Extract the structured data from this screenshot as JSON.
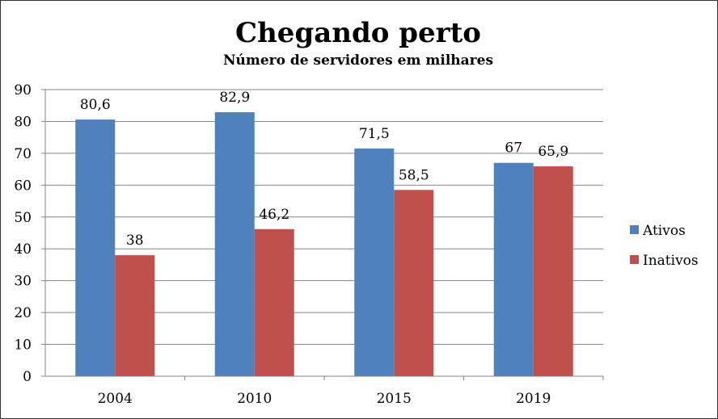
{
  "chart_data": {
    "type": "bar",
    "title": "Chegando perto",
    "subtitle": "Número de servidores em milhares",
    "categories": [
      "2004",
      "2010",
      "2015",
      "2019"
    ],
    "series": [
      {
        "name": "Ativos",
        "values": [
          80.6,
          82.9,
          71.5,
          67
        ],
        "labels": [
          "80,6",
          "82,9",
          "71,5",
          "67"
        ],
        "color": "#4F81BD"
      },
      {
        "name": "Inativos",
        "values": [
          38,
          46.2,
          58.5,
          65.9
        ],
        "labels": [
          "38",
          "46,2",
          "58,5",
          "65,9"
        ],
        "color": "#C0504D"
      }
    ],
    "ylim": [
      0,
      90
    ],
    "yticks": [
      0,
      10,
      20,
      30,
      40,
      50,
      60,
      70,
      80,
      90
    ],
    "grid": true,
    "legend": "right"
  }
}
